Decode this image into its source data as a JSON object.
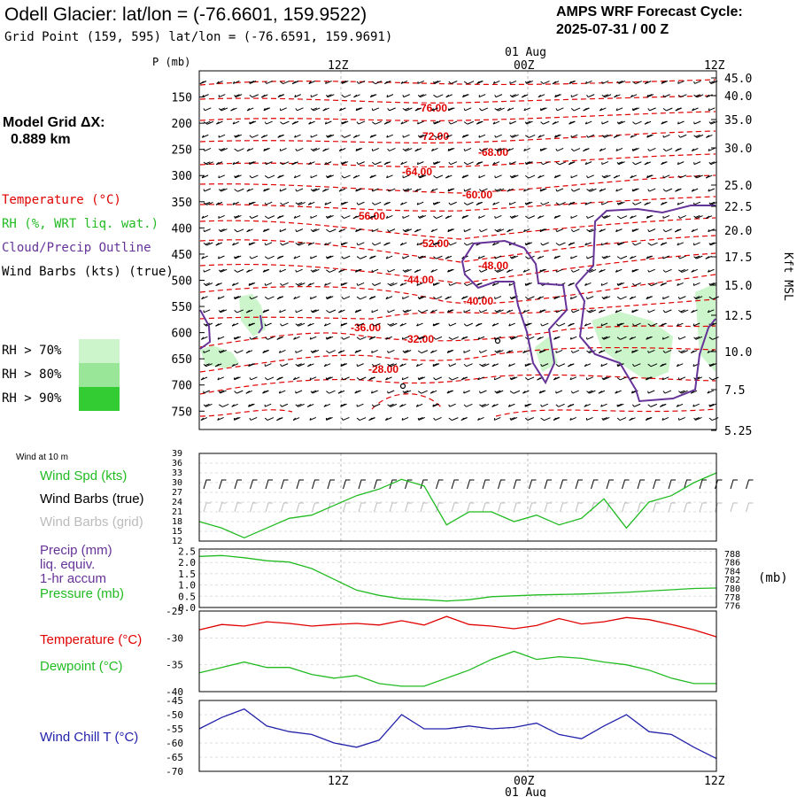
{
  "header": {
    "title": "Odell Glacier:  lat/lon = (-76.6601, 159.9522)",
    "grid_point": "Grid Point (159, 595) lat/lon = (-76.6591, 159.9691)",
    "cycle_label": "AMPS WRF Forecast Cycle:",
    "cycle_value": "2025-07-31 / 00  Z"
  },
  "left_panel": {
    "model_grid_label": "Model Grid ΔX:",
    "model_grid_value": "0.889 km",
    "legend_temperature": "Temperature (°C)",
    "legend_rh": "RH (%, WRT liq. wat.)",
    "legend_cloud": "Cloud/Precip Outline",
    "legend_wind": "Wind Barbs (kts) (true)",
    "rh_70": "RH > 70%",
    "rh_80": "RH > 80%",
    "rh_90": "RH > 90%",
    "colors": {
      "rh70": "#ccf5cc",
      "rh80": "#99e699",
      "rh90": "#33cc33",
      "temperature": "#e00000",
      "cloud": "#663399",
      "wind_speed": "#22bb22",
      "dewpoint": "#22bb22",
      "wind_chill": "#2222aa"
    }
  },
  "time_axis": {
    "top_labels": [
      "12Z",
      "00Z",
      "12Z"
    ],
    "date_label": "01 Aug",
    "bottom_labels": [
      "12Z",
      "00Z",
      "12Z"
    ]
  },
  "chart_data": [
    {
      "type": "line",
      "name": "cross-section",
      "ylabel_left": "P (mb)",
      "ylabel_right": "Kft MSL",
      "pressure_ticks": [
        150,
        200,
        250,
        300,
        350,
        400,
        450,
        500,
        550,
        600,
        650,
        700,
        750
      ],
      "pressure_ylim": [
        100,
        785
      ],
      "height_ticks": [
        "45.0",
        "40.0",
        "35.0",
        "30.0",
        "25.0",
        "22.5",
        "20.0",
        "17.5",
        "15.0",
        "12.5",
        "10.0",
        "7.5",
        "5.25"
      ],
      "temperature_labels": [
        "-76.00",
        "-72.00",
        "-68.00",
        "-64.00",
        "-60.00",
        "-56.00",
        "-52.00",
        "-48.00",
        "-44.00",
        "-40.00",
        "-36.00",
        "-32.00",
        "-28.00"
      ]
    },
    {
      "type": "line",
      "name": "wind-10m",
      "panel_label": "Wind at 10 m",
      "legend_speed": "Wind Spd (kts)",
      "legend_barbs_true": "Wind Barbs (true)",
      "legend_barbs_grid": "Wind Barbs (grid)",
      "yticks": [
        12,
        15,
        18,
        21,
        24,
        27,
        30,
        33,
        36,
        39
      ],
      "ylim": [
        12,
        39
      ],
      "values": [
        18,
        16,
        13,
        16,
        19,
        20,
        23,
        26,
        28,
        31,
        29,
        17,
        21,
        21,
        18,
        20,
        17,
        19,
        25,
        16,
        24,
        26,
        30,
        33
      ]
    },
    {
      "type": "line",
      "name": "precip-pressure",
      "legend_precip": "Precip (mm)",
      "legend_liq": "liq. equiv.",
      "legend_accum": "1-hr accum",
      "legend_pressure": "Pressure (mb)",
      "right_unit": "(mb)",
      "left_yticks": [
        "0.0",
        "0.5",
        "1.0",
        "1.5",
        "2.0",
        "2.5"
      ],
      "left_ylim": [
        0,
        2.6
      ],
      "right_yticks": [
        "776",
        "778",
        "780",
        "782",
        "784",
        "786",
        "788"
      ],
      "right_ylim": [
        775.5,
        789
      ],
      "pressure_values": [
        787.3,
        787.5,
        787.0,
        786.3,
        786.0,
        784.5,
        782.0,
        779.5,
        778.3,
        777.5,
        777.3,
        777.0,
        777.3,
        778.0,
        778.2,
        778.4,
        778.5,
        778.6,
        778.8,
        779.0,
        779.3,
        779.6,
        779.9,
        780.0
      ]
    },
    {
      "type": "line",
      "name": "temperature-dewpoint",
      "legend_temperature": "Temperature (°C)",
      "legend_dewpoint": "Dewpoint (°C)",
      "yticks": [
        -25,
        -30,
        -35,
        -40
      ],
      "ylim": [
        -40,
        -25
      ],
      "temperature": [
        -28.5,
        -27.5,
        -27.8,
        -27.0,
        -27.3,
        -27.8,
        -27.5,
        -27.3,
        -27.6,
        -26.8,
        -27.6,
        -26.0,
        -27.5,
        -27.8,
        -28.3,
        -27.7,
        -26.4,
        -27.4,
        -27.0,
        -26.2,
        -26.6,
        -27.5,
        -28.5,
        -29.8
      ],
      "dewpoint": [
        -36.5,
        -35.5,
        -34.5,
        -35.5,
        -35.5,
        -36.8,
        -37.5,
        -37.0,
        -38.5,
        -39.0,
        -39.0,
        -37.5,
        -36.0,
        -34.0,
        -32.5,
        -34.0,
        -33.5,
        -33.8,
        -34.5,
        -35.0,
        -36.0,
        -37.5,
        -38.5,
        -38.5
      ]
    },
    {
      "type": "line",
      "name": "wind-chill",
      "legend": "Wind Chill T (°C)",
      "yticks": [
        -45,
        -50,
        -55,
        -60,
        -65,
        -70
      ],
      "ylim": [
        -70,
        -45
      ],
      "values": [
        -55,
        -51,
        -48,
        -54,
        -56,
        -57,
        -60,
        -61.5,
        -59,
        -50,
        -55,
        -55,
        -54,
        -55,
        -54.5,
        -53,
        -57,
        -58.5,
        -54,
        -50,
        -56,
        -57,
        -61.5,
        -65.5
      ]
    }
  ]
}
